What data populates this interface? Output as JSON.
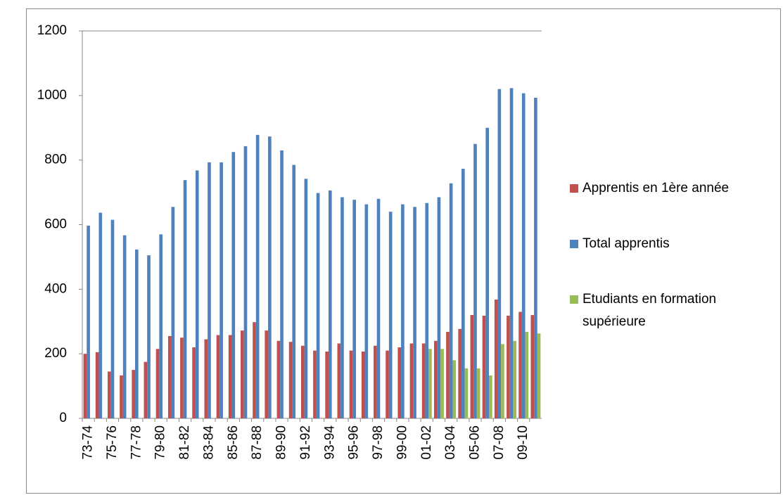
{
  "chart_data": {
    "type": "bar",
    "categories": [
      "73-74",
      null,
      "75-76",
      null,
      "77-78",
      null,
      "79-80",
      null,
      "81-82",
      null,
      "83-84",
      null,
      "85-86",
      null,
      "87-88",
      null,
      "89-90",
      null,
      "91-92",
      null,
      "93-94",
      null,
      "95-96",
      null,
      "97-98",
      null,
      "99-00",
      null,
      "01-02",
      null,
      "03-04",
      null,
      "05-06",
      null,
      "07-08",
      null,
      "09-10",
      null
    ],
    "series": [
      {
        "name": "Apprentis en 1ère année",
        "color": "#c0504d",
        "values": [
          200,
          205,
          145,
          133,
          150,
          175,
          215,
          255,
          250,
          220,
          245,
          258,
          258,
          272,
          298,
          272,
          240,
          237,
          225,
          210,
          207,
          232,
          210,
          207,
          225,
          210,
          220,
          232,
          232,
          240,
          268,
          277,
          320,
          318,
          368,
          318,
          330,
          320
        ]
      },
      {
        "name": "Total apprentis",
        "color": "#4f81bd",
        "values": [
          597,
          637,
          615,
          567,
          523,
          505,
          570,
          655,
          738,
          768,
          793,
          793,
          825,
          843,
          878,
          873,
          830,
          785,
          742,
          698,
          706,
          685,
          677,
          663,
          680,
          640,
          663,
          655,
          667,
          685,
          728,
          773,
          850,
          900,
          1020,
          1023,
          1007,
          993
        ]
      },
      {
        "name": "Etudiants en formation supérieure",
        "color": "#9bbb59",
        "values": [
          null,
          null,
          null,
          null,
          null,
          null,
          null,
          null,
          null,
          null,
          null,
          null,
          null,
          null,
          null,
          null,
          null,
          null,
          null,
          null,
          null,
          null,
          null,
          null,
          null,
          null,
          null,
          null,
          215,
          215,
          180,
          155,
          155,
          133,
          230,
          240,
          268,
          263
        ]
      }
    ],
    "ylim": [
      0,
      1200
    ],
    "yticks": [
      0,
      200,
      400,
      600,
      800,
      1000,
      1200
    ],
    "grid": false,
    "legend": "right"
  }
}
